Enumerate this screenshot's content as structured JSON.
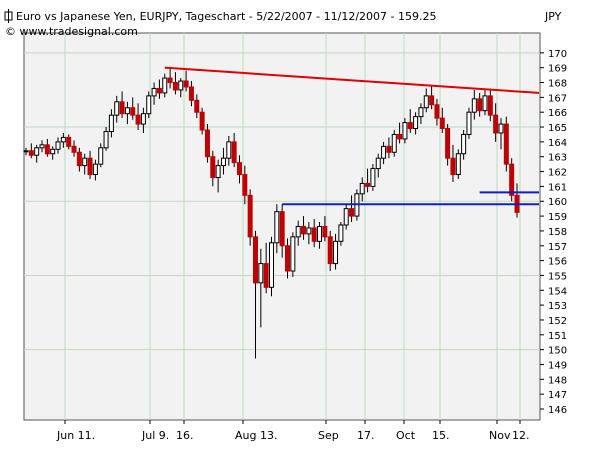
{
  "chart_data": {
    "type": "candlestick",
    "title": "Euro vs Japanese Yen, EURJPY, Tageschart - 5/22/2007 - 11/12/2007 - 159.25",
    "subtitle": "© www.tradesignal.com",
    "yunit": "JPY",
    "ylim": [
      145,
      173
    ],
    "yticks": [
      146,
      147,
      148,
      149,
      150,
      151,
      152,
      153,
      154,
      155,
      156,
      157,
      158,
      159,
      160,
      161,
      162,
      163,
      164,
      165,
      166,
      167,
      168,
      169,
      170
    ],
    "xticks": [
      "Jun 11.",
      "Jul 9.",
      "16.",
      "Aug 13.",
      "Sep",
      "17.",
      "Oct",
      "15.",
      "Nov",
      "12."
    ],
    "candles": [
      [
        163.4,
        163.6,
        163.1,
        163.4
      ],
      [
        163.4,
        163.9,
        162.9,
        163.1
      ],
      [
        163.1,
        163.8,
        162.6,
        163.6
      ],
      [
        163.6,
        164.1,
        163.3,
        163.8
      ],
      [
        163.8,
        164.2,
        163.0,
        163.2
      ],
      [
        163.2,
        163.7,
        162.8,
        163.5
      ],
      [
        163.5,
        164.3,
        163.2,
        164.0
      ],
      [
        164.0,
        164.6,
        163.6,
        164.3
      ],
      [
        164.3,
        164.5,
        163.5,
        163.7
      ],
      [
        163.7,
        164.1,
        163.0,
        163.3
      ],
      [
        163.3,
        163.6,
        162.0,
        162.4
      ],
      [
        162.4,
        163.2,
        161.8,
        162.9
      ],
      [
        162.9,
        163.4,
        161.5,
        161.8
      ],
      [
        161.8,
        162.8,
        161.4,
        162.5
      ],
      [
        162.5,
        163.9,
        162.3,
        163.6
      ],
      [
        163.6,
        165.0,
        163.4,
        164.7
      ],
      [
        164.7,
        166.2,
        164.3,
        165.8
      ],
      [
        165.8,
        167.1,
        165.3,
        166.7
      ],
      [
        166.7,
        167.4,
        165.6,
        165.9
      ],
      [
        165.9,
        166.7,
        165.2,
        166.3
      ],
      [
        166.3,
        167.0,
        165.5,
        165.8
      ],
      [
        165.8,
        166.6,
        164.8,
        165.2
      ],
      [
        165.2,
        166.3,
        164.6,
        165.9
      ],
      [
        165.9,
        167.4,
        165.6,
        167.1
      ],
      [
        167.1,
        168.0,
        166.5,
        167.6
      ],
      [
        167.6,
        168.2,
        166.9,
        167.3
      ],
      [
        167.3,
        168.6,
        167.0,
        168.3
      ],
      [
        168.3,
        169.0,
        167.6,
        168.0
      ],
      [
        168.0,
        168.7,
        167.2,
        167.5
      ],
      [
        167.5,
        168.3,
        167.0,
        168.1
      ],
      [
        168.1,
        168.8,
        167.4,
        167.7
      ],
      [
        167.7,
        168.1,
        166.4,
        166.8
      ],
      [
        166.8,
        167.2,
        165.6,
        166.0
      ],
      [
        166.0,
        166.3,
        164.5,
        164.8
      ],
      [
        164.8,
        165.2,
        162.6,
        163.0
      ],
      [
        163.0,
        163.4,
        161.0,
        161.6
      ],
      [
        161.6,
        162.8,
        160.6,
        162.4
      ],
      [
        162.4,
        163.6,
        161.8,
        162.9
      ],
      [
        162.9,
        164.4,
        162.4,
        164.0
      ],
      [
        164.0,
        164.6,
        162.3,
        162.6
      ],
      [
        162.6,
        163.1,
        161.2,
        161.8
      ],
      [
        161.8,
        162.4,
        159.8,
        160.4
      ],
      [
        160.4,
        160.8,
        157.0,
        157.6
      ],
      [
        157.6,
        158.0,
        149.4,
        154.5
      ],
      [
        154.5,
        156.8,
        151.5,
        155.8
      ],
      [
        155.8,
        157.2,
        153.8,
        154.2
      ],
      [
        154.2,
        157.6,
        153.6,
        157.2
      ],
      [
        157.2,
        159.8,
        156.5,
        159.3
      ],
      [
        159.3,
        159.8,
        156.2,
        157.0
      ],
      [
        157.0,
        157.5,
        154.8,
        155.3
      ],
      [
        155.3,
        157.9,
        154.9,
        157.6
      ],
      [
        157.6,
        158.7,
        157.0,
        158.3
      ],
      [
        158.3,
        159.0,
        157.4,
        157.8
      ],
      [
        157.8,
        158.6,
        157.1,
        158.2
      ],
      [
        158.2,
        158.8,
        156.9,
        157.3
      ],
      [
        157.3,
        158.6,
        156.8,
        158.3
      ],
      [
        158.3,
        159.0,
        157.3,
        157.6
      ],
      [
        157.6,
        158.0,
        155.3,
        155.8
      ],
      [
        155.8,
        157.8,
        155.4,
        157.3
      ],
      [
        157.3,
        158.6,
        157.0,
        158.4
      ],
      [
        158.4,
        159.8,
        158.1,
        159.5
      ],
      [
        159.5,
        160.4,
        158.6,
        159.0
      ],
      [
        159.0,
        160.8,
        158.7,
        160.5
      ],
      [
        160.5,
        161.6,
        160.0,
        161.2
      ],
      [
        161.2,
        162.2,
        160.6,
        161.0
      ],
      [
        161.0,
        162.5,
        160.7,
        162.2
      ],
      [
        162.2,
        163.2,
        161.6,
        162.9
      ],
      [
        162.9,
        164.0,
        162.5,
        163.7
      ],
      [
        163.7,
        164.3,
        162.9,
        163.3
      ],
      [
        163.3,
        164.8,
        163.0,
        164.5
      ],
      [
        164.5,
        165.3,
        163.9,
        164.2
      ],
      [
        164.2,
        165.6,
        163.9,
        165.3
      ],
      [
        165.3,
        166.2,
        164.6,
        164.9
      ],
      [
        164.9,
        166.0,
        164.5,
        165.7
      ],
      [
        165.7,
        166.6,
        165.2,
        166.3
      ],
      [
        166.3,
        167.6,
        166.0,
        167.1
      ],
      [
        167.1,
        167.8,
        166.2,
        166.5
      ],
      [
        166.5,
        166.9,
        165.1,
        165.6
      ],
      [
        165.6,
        166.3,
        164.6,
        164.9
      ],
      [
        164.9,
        165.2,
        162.4,
        162.9
      ],
      [
        162.9,
        163.8,
        161.3,
        161.8
      ],
      [
        161.8,
        163.5,
        161.5,
        163.2
      ],
      [
        163.2,
        164.8,
        162.8,
        164.5
      ],
      [
        164.5,
        166.3,
        164.2,
        166.0
      ],
      [
        166.0,
        167.5,
        165.5,
        166.9
      ],
      [
        166.9,
        167.3,
        165.7,
        166.1
      ],
      [
        166.1,
        167.5,
        165.8,
        167.1
      ],
      [
        167.1,
        167.6,
        165.4,
        165.8
      ],
      [
        165.8,
        166.6,
        164.0,
        164.6
      ],
      [
        164.6,
        165.6,
        163.5,
        165.2
      ],
      [
        165.2,
        165.7,
        162.0,
        162.5
      ],
      [
        162.5,
        162.9,
        160.0,
        160.4
      ],
      [
        160.4,
        161.2,
        158.9,
        159.25
      ]
    ],
    "trendlines": [
      {
        "color": "#e00000",
        "from_index": 26,
        "to_index": 92,
        "from_value": 169.0,
        "to_value": 167.3
      },
      {
        "color": "#1020c8",
        "from_index": 48,
        "to_index": 92,
        "from_value": 159.8,
        "to_value": 159.8
      },
      {
        "color": "#1020c8",
        "from_index": 85,
        "to_index": 92,
        "from_value": 160.6,
        "to_value": 160.6
      }
    ],
    "colors": {
      "up": "#ffffff",
      "down": "#c00000",
      "wick": "#000000",
      "grid": "#bfd9bf",
      "plot_bg": "#f2f2f2"
    },
    "grid": true
  }
}
